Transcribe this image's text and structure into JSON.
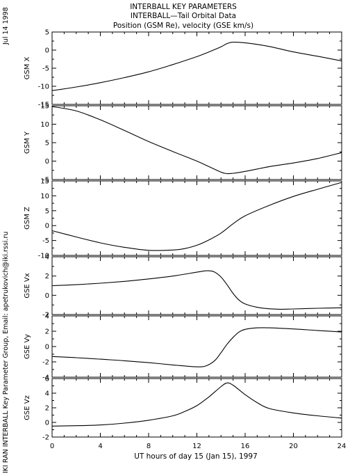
{
  "header": {
    "title_line1": "INTERBALL KEY PARAMETERS",
    "title_line2": "INTERBALL—Tail Orbital Data",
    "title_line3": "Position (GSM Re), velocity (GSE km/s)"
  },
  "side": {
    "date": "Jul 14 1998",
    "credit": "IKI RAN INTERBALL Key Parameter Group, Email: apetrukovich@iki.rssi.ru"
  },
  "xaxis": {
    "label": "UT hours of day  15 (Jan 15), 1997",
    "ticks": [
      "0",
      "4",
      "8",
      "12",
      "16",
      "20",
      "24"
    ]
  },
  "chart_data": [
    {
      "type": "line",
      "ylabel": "GSM X",
      "xlim": [
        0,
        24
      ],
      "ylim": [
        -15,
        5
      ],
      "yticks": [
        -15,
        -10,
        -5,
        0,
        5
      ],
      "series": [
        {
          "x": [
            0,
            2,
            4,
            6,
            8,
            10,
            12,
            13,
            14,
            14.5,
            15,
            16,
            18,
            20,
            22,
            24
          ],
          "y": [
            -11.2,
            -10.2,
            -9.0,
            -7.6,
            -6.0,
            -4.0,
            -1.8,
            -0.5,
            0.9,
            1.8,
            2.2,
            2.0,
            1.0,
            -0.5,
            -1.7,
            -3.0
          ]
        }
      ]
    },
    {
      "type": "line",
      "ylabel": "GSM Y",
      "xlim": [
        0,
        24
      ],
      "ylim": [
        -5,
        15
      ],
      "yticks": [
        -5,
        0,
        5,
        10,
        15
      ],
      "series": [
        {
          "x": [
            0,
            2,
            4,
            6,
            8,
            10,
            12,
            13,
            14,
            14.5,
            15,
            16,
            18,
            20,
            22,
            24
          ],
          "y": [
            14.8,
            13.6,
            11.2,
            8.3,
            5.3,
            2.6,
            0.0,
            -1.5,
            -3.0,
            -3.4,
            -3.3,
            -2.8,
            -1.5,
            -0.5,
            0.7,
            2.3
          ]
        }
      ]
    },
    {
      "type": "line",
      "ylabel": "GSM Z",
      "xlim": [
        0,
        24
      ],
      "ylim": [
        -10,
        15
      ],
      "yticks": [
        -10,
        -5,
        0,
        5,
        10,
        15
      ],
      "series": [
        {
          "x": [
            0,
            2,
            4,
            6,
            8,
            10,
            11,
            12,
            13,
            14,
            15,
            16,
            18,
            20,
            22,
            24
          ],
          "y": [
            -1.7,
            -3.8,
            -5.8,
            -7.3,
            -8.3,
            -8.2,
            -7.7,
            -6.6,
            -4.8,
            -2.5,
            0.6,
            3.3,
            6.8,
            9.8,
            12.2,
            14.5
          ]
        }
      ]
    },
    {
      "type": "line",
      "ylabel": "GSE Vx",
      "xlim": [
        0,
        24
      ],
      "ylim": [
        -2,
        4
      ],
      "yticks": [
        -2,
        0,
        2,
        4
      ],
      "series": [
        {
          "x": [
            0,
            2,
            4,
            6,
            8,
            10,
            12,
            12.8,
            13.4,
            14,
            14.5,
            15,
            15.5,
            16,
            17,
            18,
            19,
            20,
            22,
            24
          ],
          "y": [
            1.0,
            1.1,
            1.25,
            1.45,
            1.7,
            2.0,
            2.4,
            2.55,
            2.45,
            1.9,
            1.1,
            0.2,
            -0.5,
            -0.9,
            -1.25,
            -1.4,
            -1.45,
            -1.42,
            -1.35,
            -1.3
          ]
        }
      ]
    },
    {
      "type": "line",
      "ylabel": "GSE Vy",
      "xlim": [
        0,
        24
      ],
      "ylim": [
        -4,
        4
      ],
      "yticks": [
        -4,
        -2,
        0,
        2,
        4
      ],
      "series": [
        {
          "x": [
            0,
            2,
            4,
            6,
            8,
            10,
            12,
            12.8,
            13.5,
            14,
            14.5,
            15,
            15.5,
            16,
            17,
            18,
            20,
            22,
            24
          ],
          "y": [
            -1.3,
            -1.45,
            -1.65,
            -1.85,
            -2.1,
            -2.4,
            -2.65,
            -2.5,
            -1.8,
            -0.8,
            0.3,
            1.2,
            1.9,
            2.25,
            2.45,
            2.45,
            2.3,
            2.1,
            1.9
          ]
        }
      ]
    },
    {
      "type": "line",
      "ylabel": "GSE Vz",
      "xlim": [
        0,
        24
      ],
      "ylim": [
        -2,
        6
      ],
      "yticks": [
        -2,
        0,
        2,
        4,
        6
      ],
      "series": [
        {
          "x": [
            0,
            2,
            4,
            6,
            8,
            10,
            11,
            12,
            13,
            14,
            14.5,
            15,
            16,
            17,
            18,
            20,
            22,
            24
          ],
          "y": [
            -0.5,
            -0.45,
            -0.35,
            -0.1,
            0.3,
            0.9,
            1.5,
            2.3,
            3.5,
            4.9,
            5.4,
            5.1,
            3.8,
            2.7,
            1.9,
            1.3,
            0.9,
            0.6
          ]
        }
      ]
    }
  ]
}
